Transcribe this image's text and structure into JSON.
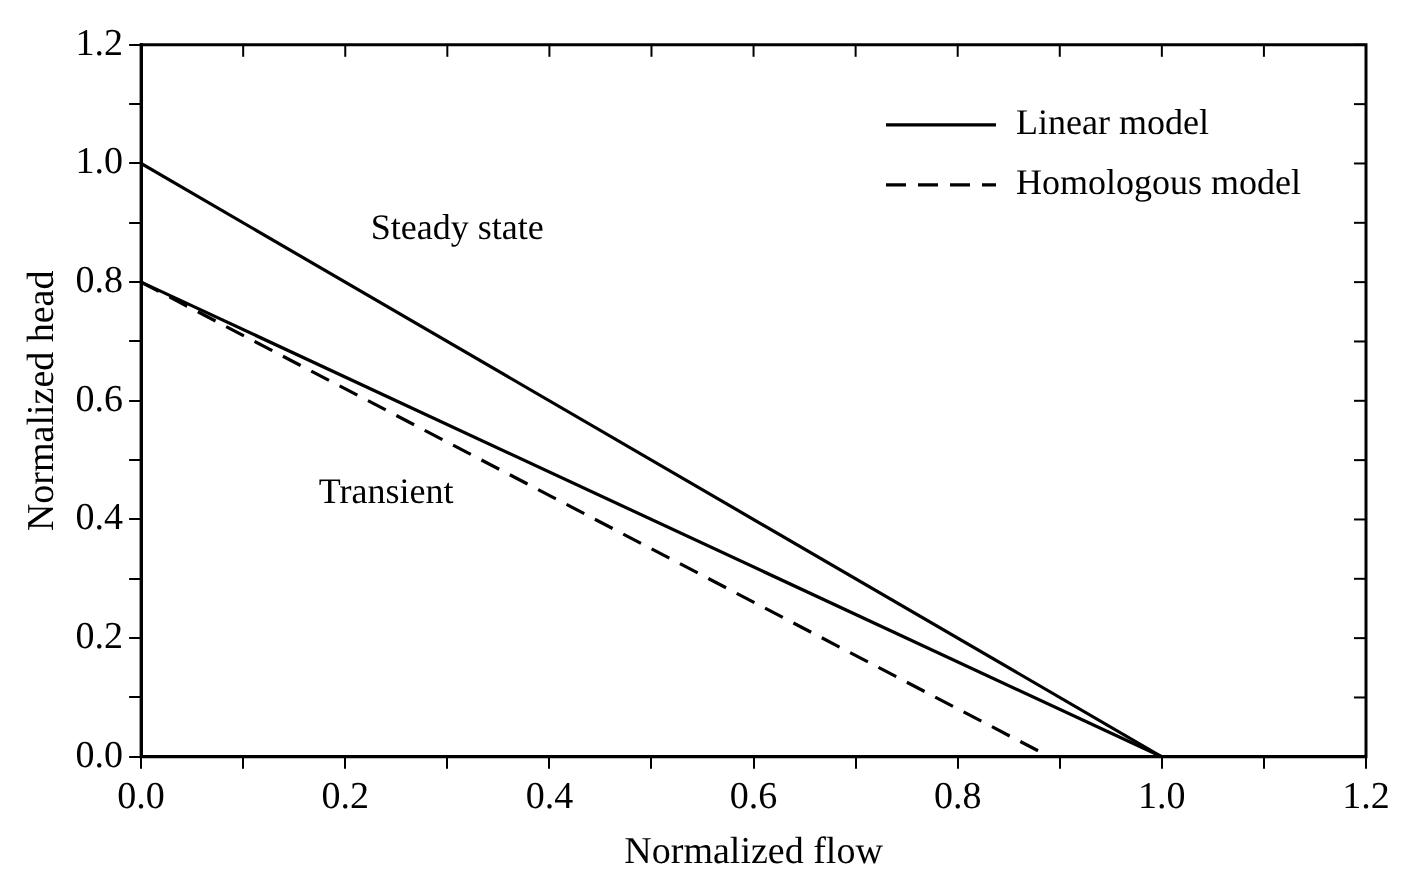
{
  "chart_data": {
    "type": "line",
    "xlabel": "Normalized flow",
    "ylabel": "Normalized head",
    "xlim": [
      0,
      1.2
    ],
    "ylim": [
      0,
      1.2
    ],
    "xticks": [
      {
        "value": 0,
        "label": "0.0"
      },
      {
        "value": 0.1,
        "label": null
      },
      {
        "value": 0.2,
        "label": "0.2"
      },
      {
        "value": 0.3,
        "label": null
      },
      {
        "value": 0.4,
        "label": "0.4"
      },
      {
        "value": 0.5,
        "label": null
      },
      {
        "value": 0.6,
        "label": "0.6"
      },
      {
        "value": 0.7,
        "label": null
      },
      {
        "value": 0.8,
        "label": "0.8"
      },
      {
        "value": 0.9,
        "label": null
      },
      {
        "value": 1,
        "label": "1.0"
      },
      {
        "value": 1.1,
        "label": null
      },
      {
        "value": 1.2,
        "label": "1.2"
      }
    ],
    "yticks": [
      {
        "value": 0,
        "label": "0.0"
      },
      {
        "value": 0.1,
        "label": null
      },
      {
        "value": 0.2,
        "label": "0.2"
      },
      {
        "value": 0.3,
        "label": null
      },
      {
        "value": 0.4,
        "label": "0.4"
      },
      {
        "value": 0.5,
        "label": null
      },
      {
        "value": 0.6,
        "label": "0.6"
      },
      {
        "value": 0.7,
        "label": null
      },
      {
        "value": 0.8,
        "label": "0.8"
      },
      {
        "value": 0.9,
        "label": null
      },
      {
        "value": 1,
        "label": "1.0"
      },
      {
        "value": 1.1,
        "label": null
      },
      {
        "value": 1.2,
        "label": "1.2"
      }
    ],
    "grid": false,
    "legend": "top right",
    "marker": "none",
    "series": [
      {
        "name": "Linear model",
        "color": "#000000",
        "line_style": "solid",
        "x": [
          0,
          1
        ],
        "values": [
          1,
          0
        ]
      },
      {
        "color": "#000000",
        "line_style": "solid",
        "x": [
          0,
          1
        ],
        "values": [
          0.8,
          0
        ]
      },
      {
        "name": "Homologous model",
        "color": "#000000",
        "line_style": "dashed",
        "x": [
          0,
          0.89
        ],
        "values": [
          0.8,
          0
        ]
      }
    ],
    "annotations": [
      "Steady state",
      "Transient"
    ]
  }
}
